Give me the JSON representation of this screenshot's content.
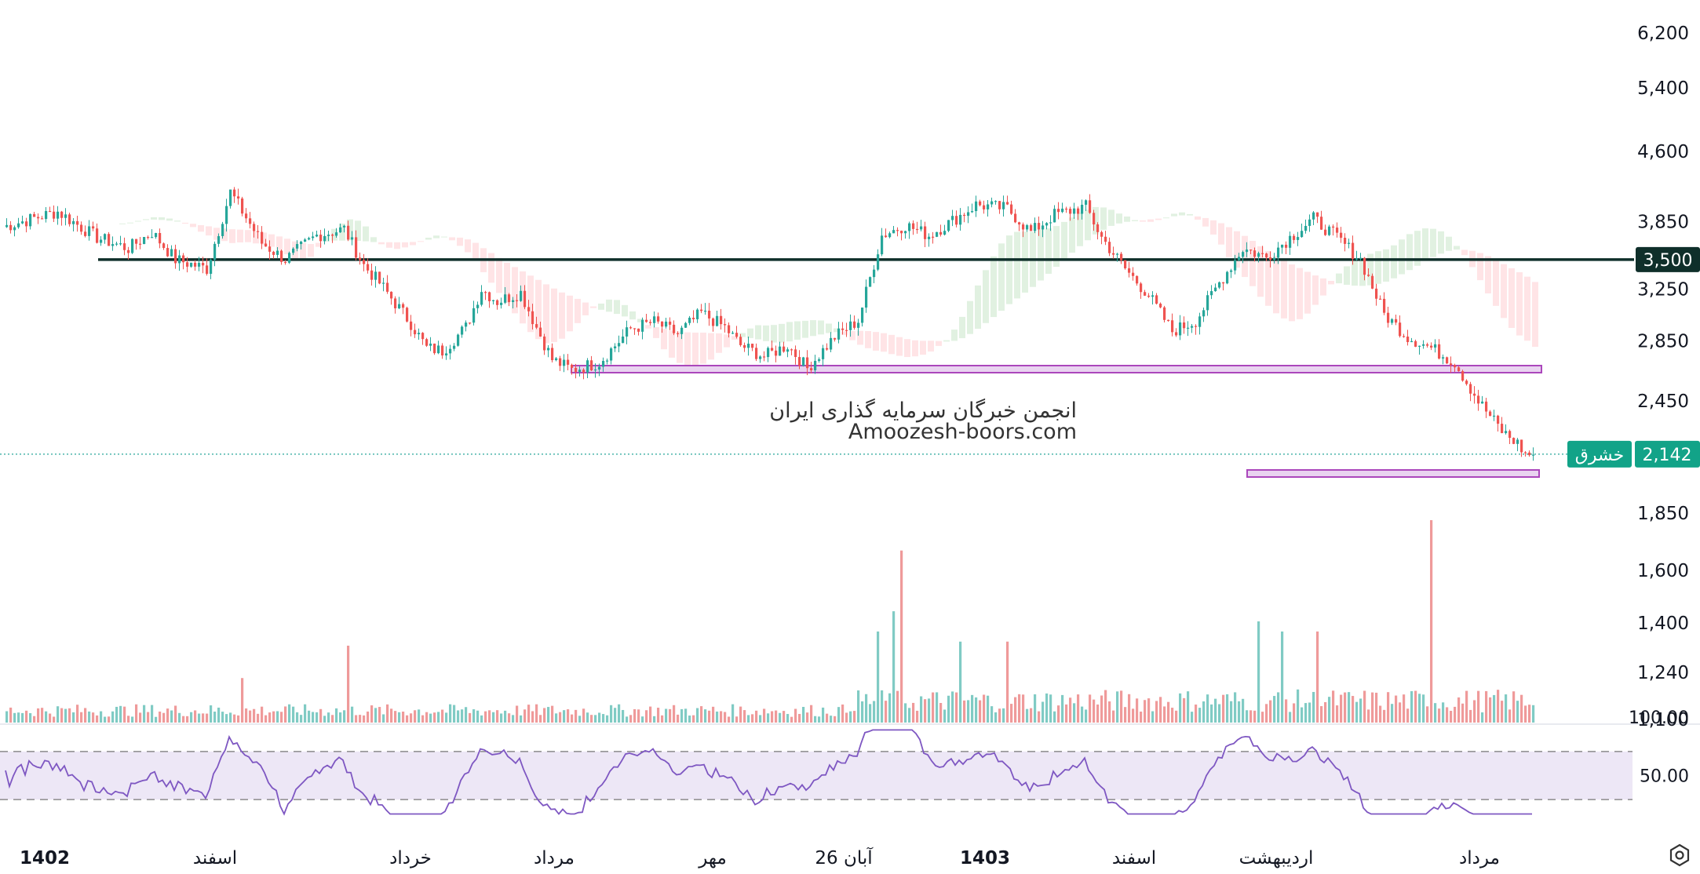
{
  "chart_data": {
    "type": "candlestick",
    "symbol": "خشرق",
    "last_price": "2,142",
    "price_scale": "log",
    "price_ticks": [
      "6,200",
      "5,400",
      "4,600",
      "3,850",
      "3,250",
      "2,850",
      "2,450",
      "1,850",
      "1,600",
      "1,400",
      "1,240",
      "1,100"
    ],
    "price_badges": [
      {
        "value": "3,500",
        "color": "#0f2f2a"
      },
      {
        "value": "2,142",
        "label": "خشرق",
        "color": "#12a388"
      }
    ],
    "time_labels": [
      {
        "text": "1402",
        "bold": true
      },
      {
        "text": "اسفند",
        "bold": false
      },
      {
        "text": "خرداد",
        "bold": false
      },
      {
        "text": "مرداد",
        "bold": false
      },
      {
        "text": "مهر",
        "bold": false
      },
      {
        "text": "26 آبان",
        "bold": false
      },
      {
        "text": "1403",
        "bold": true
      },
      {
        "text": "اسفند",
        "bold": false
      },
      {
        "text": "اردیبهشت",
        "bold": false
      },
      {
        "text": "مرداد",
        "bold": false
      }
    ],
    "price_path": [
      [
        0,
        3800
      ],
      [
        14,
        3950
      ],
      [
        24,
        3700
      ],
      [
        32,
        3600
      ],
      [
        38,
        3750
      ],
      [
        44,
        3500
      ],
      [
        52,
        3420
      ],
      [
        58,
        4150
      ],
      [
        66,
        3650
      ],
      [
        72,
        3500
      ],
      [
        80,
        3720
      ],
      [
        87,
        3780
      ],
      [
        92,
        3450
      ],
      [
        96,
        3300
      ],
      [
        104,
        2980
      ],
      [
        108,
        2800
      ],
      [
        112,
        2780
      ],
      [
        118,
        2950
      ],
      [
        122,
        3250
      ],
      [
        126,
        3150
      ],
      [
        132,
        3220
      ],
      [
        136,
        2950
      ],
      [
        140,
        2720
      ],
      [
        145,
        2650
      ],
      [
        152,
        2700
      ],
      [
        160,
        2940
      ],
      [
        166,
        2990
      ],
      [
        172,
        2900
      ],
      [
        178,
        3060
      ],
      [
        184,
        2950
      ],
      [
        188,
        2820
      ],
      [
        194,
        2740
      ],
      [
        200,
        2820
      ],
      [
        205,
        2660
      ],
      [
        212,
        2880
      ],
      [
        218,
        3000
      ],
      [
        224,
        3720
      ],
      [
        230,
        3820
      ],
      [
        236,
        3720
      ],
      [
        242,
        3860
      ],
      [
        248,
        4020
      ],
      [
        256,
        3980
      ],
      [
        262,
        3750
      ],
      [
        268,
        3920
      ],
      [
        276,
        4000
      ],
      [
        280,
        3700
      ],
      [
        286,
        3420
      ],
      [
        292,
        3200
      ],
      [
        298,
        2920
      ],
      [
        304,
        3000
      ],
      [
        310,
        3300
      ],
      [
        316,
        3600
      ],
      [
        322,
        3520
      ],
      [
        328,
        3700
      ],
      [
        334,
        3880
      ],
      [
        340,
        3700
      ],
      [
        346,
        3500
      ],
      [
        352,
        3050
      ],
      [
        358,
        2880
      ],
      [
        364,
        2800
      ],
      [
        370,
        2700
      ],
      [
        376,
        2450
      ],
      [
        382,
        2270
      ],
      [
        386,
        2200
      ],
      [
        388,
        2142
      ]
    ],
    "volume_profile": {
      "typical": 0.07,
      "spikes": [
        [
          61,
          0.22
        ],
        [
          88,
          0.38
        ],
        [
          223,
          0.45
        ],
        [
          227,
          0.55
        ],
        [
          229,
          0.85
        ],
        [
          244,
          0.4
        ],
        [
          256,
          0.4
        ],
        [
          320,
          0.5
        ],
        [
          326,
          0.45
        ],
        [
          335,
          0.45
        ],
        [
          364,
          1.0
        ]
      ]
    },
    "rsi": {
      "ticks": [
        "100.00",
        "50.00"
      ],
      "upper": 70,
      "lower": 30,
      "colors": {
        "line": "#7e57c2",
        "band": "#ede7f6"
      }
    },
    "watermark": [
      "انجمن خبرگان سرمایه گذاری ایران",
      "Amoozesh-boors.com"
    ],
    "colors": {
      "up": "#26a69a",
      "down": "#ef5350",
      "level": "#0f2f2a",
      "zone": "#ab47bc",
      "zone_fill": "#e9d3f0"
    }
  },
  "ui": {
    "settings_icon": "settings-icon"
  }
}
